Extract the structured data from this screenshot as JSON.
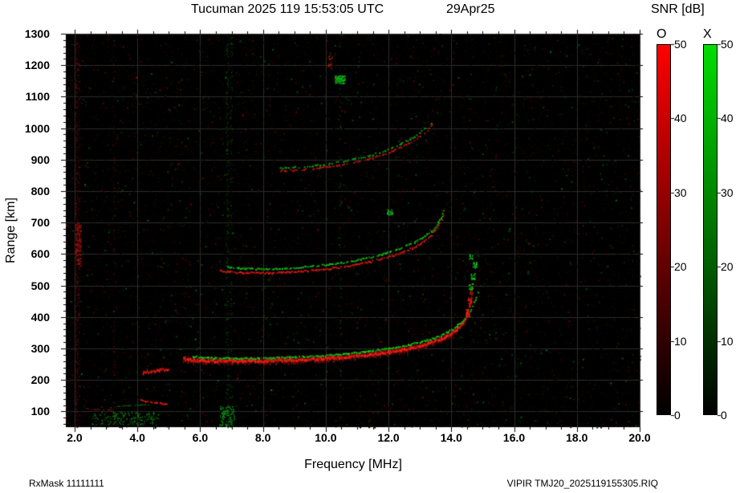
{
  "title": {
    "station": "Tucuman 2025 119 15:53:05 UTC",
    "date": "29Apr25"
  },
  "footer": {
    "left": "RxMask 11111111",
    "right": "VIPIR  TMJ20_2025119155305.RIQ"
  },
  "colorbar": {
    "title": "SNR [dB]",
    "o_label": "O",
    "x_label": "X",
    "tick_labels": [
      "50",
      "40",
      "30",
      "20",
      "10",
      "0"
    ],
    "min": 0,
    "max": 50,
    "o_top_color": "#ff0000",
    "x_top_color": "#00dd00",
    "bottom_color": "#000000"
  },
  "chart_data": {
    "type": "heatmap",
    "title": "Tucuman ionogram 2025 day 119 15:53:05 UTC",
    "xlabel": "Frequency [MHz]",
    "ylabel": "Range [km]",
    "x_tick_labels": [
      "2.0",
      "4.0",
      "6.0",
      "8.0",
      "10.0",
      "12.0",
      "14.0",
      "16.0",
      "18.0",
      "20.0"
    ],
    "y_tick_labels": [
      "1300",
      "1200",
      "1100",
      "1000",
      "900",
      "800",
      "700",
      "600",
      "500",
      "400",
      "300",
      "200",
      "100"
    ],
    "x_range": [
      1.72,
      20.0
    ],
    "y_range": [
      50,
      1300
    ],
    "grid": true,
    "bg_color": "#000000",
    "grid_color": "#2d2d2d",
    "o_mode_color": "#ff1e14",
    "x_mode_color": "#14d21e",
    "traces": [
      {
        "name": "F-region 1st hop O-mode",
        "mode": "O",
        "width": 3,
        "density": 1.0,
        "brightness": 1.0,
        "halo": true,
        "points": [
          [
            5.45,
            268
          ],
          [
            5.6,
            264
          ],
          [
            5.8,
            262
          ],
          [
            6.2,
            260
          ],
          [
            6.6,
            259
          ],
          [
            7.0,
            259
          ],
          [
            7.5,
            259
          ],
          [
            8.0,
            260
          ],
          [
            8.5,
            261
          ],
          [
            9.0,
            263
          ],
          [
            9.5,
            265
          ],
          [
            10.0,
            268
          ],
          [
            10.5,
            271
          ],
          [
            11.0,
            275
          ],
          [
            11.5,
            281
          ],
          [
            12.0,
            288
          ],
          [
            12.5,
            297
          ],
          [
            13.0,
            308
          ],
          [
            13.4,
            320
          ],
          [
            13.7,
            332
          ],
          [
            13.95,
            345
          ],
          [
            14.15,
            360
          ],
          [
            14.3,
            377
          ],
          [
            14.42,
            396
          ],
          [
            14.52,
            420
          ],
          [
            14.6,
            448
          ],
          [
            14.65,
            470
          ]
        ]
      },
      {
        "name": "F-region 1st hop X-mode",
        "mode": "X",
        "width": 2,
        "density": 0.92,
        "brightness": 0.95,
        "halo": false,
        "points": [
          [
            5.75,
            274
          ],
          [
            6.2,
            270
          ],
          [
            6.7,
            268
          ],
          [
            7.2,
            268
          ],
          [
            7.8,
            268
          ],
          [
            8.4,
            270
          ],
          [
            9.0,
            272
          ],
          [
            9.6,
            275
          ],
          [
            10.2,
            279
          ],
          [
            10.8,
            284
          ],
          [
            11.4,
            291
          ],
          [
            12.0,
            299
          ],
          [
            12.5,
            308
          ],
          [
            13.0,
            319
          ],
          [
            13.4,
            331
          ],
          [
            13.75,
            345
          ],
          [
            14.05,
            362
          ],
          [
            14.3,
            382
          ],
          [
            14.5,
            405
          ],
          [
            14.65,
            432
          ],
          [
            14.78,
            462
          ],
          [
            14.86,
            490
          ]
        ]
      },
      {
        "name": "low-frequency lead-in echo",
        "mode": "O",
        "width": 3,
        "density": 0.95,
        "brightness": 0.9,
        "halo": false,
        "points": [
          [
            4.15,
            222
          ],
          [
            4.45,
            226
          ],
          [
            4.75,
            231
          ],
          [
            5.0,
            236
          ]
        ]
      },
      {
        "name": "2nd hop O-mode",
        "mode": "O",
        "width": 2,
        "density": 0.9,
        "brightness": 0.85,
        "halo": false,
        "points": [
          [
            6.62,
            546
          ],
          [
            7.0,
            542
          ],
          [
            7.4,
            540
          ],
          [
            7.9,
            539
          ],
          [
            8.4,
            540
          ],
          [
            8.9,
            543
          ],
          [
            9.4,
            546
          ],
          [
            9.9,
            551
          ],
          [
            10.4,
            557
          ],
          [
            10.9,
            565
          ],
          [
            11.4,
            575
          ],
          [
            11.9,
            588
          ],
          [
            12.4,
            604
          ],
          [
            12.8,
            621
          ],
          [
            13.1,
            640
          ],
          [
            13.35,
            660
          ],
          [
            13.55,
            684
          ],
          [
            13.68,
            710
          ],
          [
            13.75,
            735
          ]
        ]
      },
      {
        "name": "2nd hop X-mode",
        "mode": "X",
        "width": 2,
        "density": 0.75,
        "brightness": 0.85,
        "halo": false,
        "points": [
          [
            6.85,
            558
          ],
          [
            7.3,
            554
          ],
          [
            7.8,
            552
          ],
          [
            8.4,
            553
          ],
          [
            9.0,
            556
          ],
          [
            9.6,
            561
          ],
          [
            10.2,
            568
          ],
          [
            10.8,
            577
          ],
          [
            11.4,
            589
          ],
          [
            11.9,
            602
          ],
          [
            12.4,
            618
          ],
          [
            12.8,
            636
          ],
          [
            13.15,
            657
          ],
          [
            13.45,
            682
          ],
          [
            13.65,
            712
          ],
          [
            13.78,
            748
          ]
        ]
      },
      {
        "name": "3rd hop O-mode",
        "mode": "O",
        "width": 2,
        "density": 0.6,
        "brightness": 0.75,
        "halo": false,
        "points": [
          [
            8.55,
            864
          ],
          [
            9.0,
            866
          ],
          [
            9.5,
            870
          ],
          [
            10.0,
            876
          ],
          [
            10.5,
            883
          ],
          [
            11.0,
            893
          ],
          [
            11.5,
            906
          ],
          [
            12.0,
            922
          ],
          [
            12.4,
            940
          ],
          [
            12.75,
            958
          ],
          [
            13.05,
            978
          ],
          [
            13.3,
            1000
          ],
          [
            13.42,
            1015
          ]
        ]
      },
      {
        "name": "3rd hop X-mode",
        "mode": "X",
        "width": 2,
        "density": 0.55,
        "brightness": 0.75,
        "halo": false,
        "points": [
          [
            8.45,
            872
          ],
          [
            9.0,
            875
          ],
          [
            9.5,
            879
          ],
          [
            10.0,
            885
          ],
          [
            10.5,
            893
          ],
          [
            11.0,
            903
          ],
          [
            11.5,
            916
          ],
          [
            12.0,
            932
          ],
          [
            12.4,
            950
          ],
          [
            12.75,
            969
          ],
          [
            13.05,
            990
          ],
          [
            13.3,
            1012
          ],
          [
            13.45,
            1030
          ]
        ]
      },
      {
        "name": "sporadic-E faint O",
        "mode": "O",
        "width": 1,
        "density": 0.5,
        "brightness": 0.6,
        "halo": false,
        "points": [
          [
            2.25,
            110
          ],
          [
            2.6,
            107
          ],
          [
            2.95,
            105
          ],
          [
            3.3,
            104
          ]
        ]
      },
      {
        "name": "sporadic-E faint X",
        "mode": "X",
        "width": 1,
        "density": 0.5,
        "brightness": 0.6,
        "halo": false,
        "points": [
          [
            3.35,
            116
          ],
          [
            3.7,
            119
          ],
          [
            4.05,
            121
          ],
          [
            4.35,
            122
          ]
        ]
      },
      {
        "name": "sporadic-E red streak",
        "mode": "O",
        "width": 2,
        "density": 0.8,
        "brightness": 0.85,
        "halo": false,
        "points": [
          [
            4.1,
            134
          ],
          [
            4.4,
            130
          ],
          [
            4.7,
            126
          ],
          [
            4.95,
            122
          ]
        ]
      }
    ],
    "interference_columns": [
      {
        "freq": 2.05,
        "mode": "O",
        "density": 1.0
      },
      {
        "freq": 2.12,
        "mode": "O",
        "density": 0.55
      },
      {
        "freq": 3.25,
        "mode": "O",
        "density": 0.22
      },
      {
        "freq": 6.85,
        "mode": "X",
        "density": 0.6
      },
      {
        "freq": 6.98,
        "mode": "X",
        "density": 0.3
      },
      {
        "freq": 10.45,
        "mode": "X",
        "density": 0.22
      }
    ],
    "patches": [
      {
        "mode": "X",
        "f": [
          10.28,
          10.6
        ],
        "r": [
          1143,
          1168
        ],
        "density": 2.2,
        "brightness": 1.0
      },
      {
        "mode": "X",
        "f": [
          6.6,
          7.08
        ],
        "r": [
          55,
          118
        ],
        "density": 0.5,
        "brightness": 0.8
      },
      {
        "mode": "X",
        "f": [
          2.55,
          4.65
        ],
        "r": [
          58,
          100
        ],
        "density": 0.25,
        "brightness": 0.7
      },
      {
        "mode": "O",
        "f": [
          2.02,
          2.2
        ],
        "r": [
          560,
          700
        ],
        "density": 0.8,
        "brightness": 0.7
      },
      {
        "mode": "O",
        "f": [
          10.05,
          10.2
        ],
        "r": [
          1190,
          1230
        ],
        "density": 0.5,
        "brightness": 0.8
      }
    ],
    "spread_echoes": [
      {
        "mode": "O",
        "f": [
          14.45,
          14.58
        ],
        "r": [
          400,
          425
        ]
      },
      {
        "mode": "O",
        "f": [
          14.52,
          14.64
        ],
        "r": [
          440,
          462
        ]
      },
      {
        "mode": "O",
        "f": [
          14.58,
          14.68
        ],
        "r": [
          472,
          492
        ]
      },
      {
        "mode": "X",
        "f": [
          14.55,
          14.68
        ],
        "r": [
          488,
          508
        ]
      },
      {
        "mode": "X",
        "f": [
          14.62,
          14.74
        ],
        "r": [
          520,
          542
        ]
      },
      {
        "mode": "X",
        "f": [
          14.68,
          14.8
        ],
        "r": [
          556,
          578
        ]
      },
      {
        "mode": "X",
        "f": [
          14.55,
          14.66
        ],
        "r": [
          585,
          600
        ]
      },
      {
        "mode": "X",
        "f": [
          11.95,
          12.12
        ],
        "r": [
          726,
          744
        ]
      }
    ],
    "noise": {
      "seed": 7,
      "count": 12000,
      "red_fraction": 0.62
    }
  }
}
